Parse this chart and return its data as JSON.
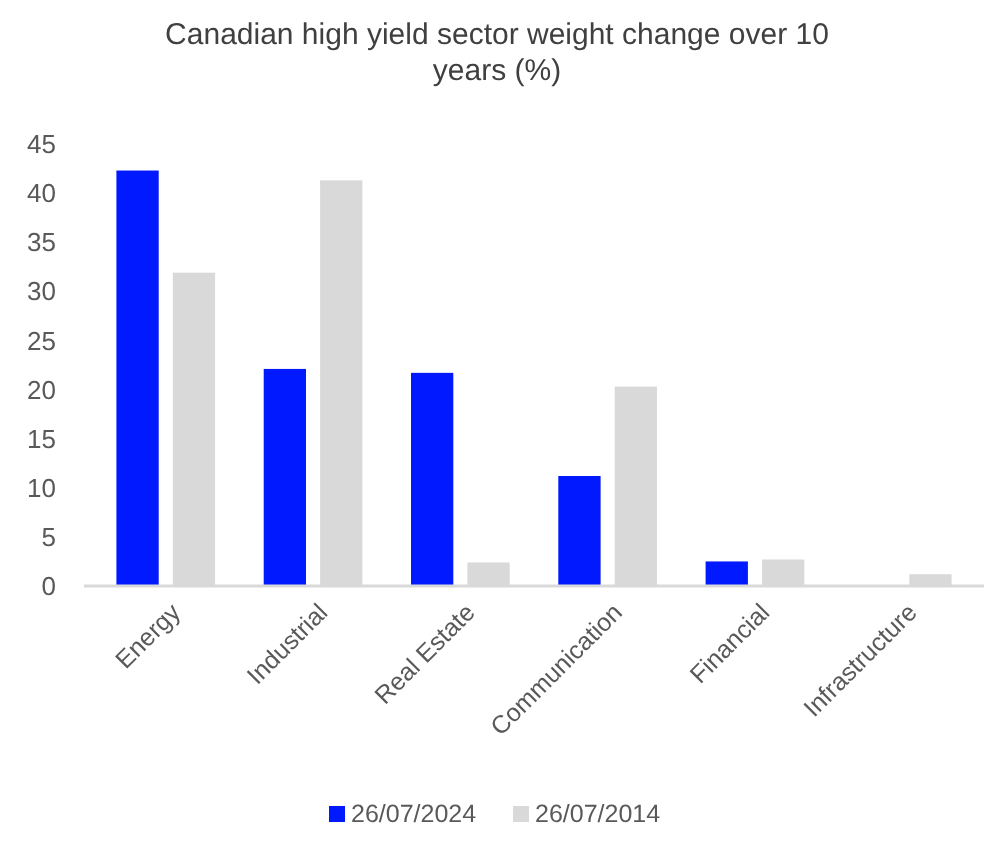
{
  "chart_data": {
    "type": "bar",
    "title": "Canadian high yield sector weight change over 10 years (%)",
    "categories": [
      "Energy",
      "Industrial",
      "Real Estate",
      "Communication",
      "Financial",
      "Infrastructure"
    ],
    "series": [
      {
        "name": "26/07/2024",
        "color": "#0019ff",
        "values": [
          42.3,
          22.1,
          21.7,
          11.2,
          2.5,
          0
        ]
      },
      {
        "name": "26/07/2014",
        "color": "#d9d9d9",
        "values": [
          31.9,
          41.3,
          2.4,
          20.3,
          2.7,
          1.2
        ]
      }
    ],
    "ylim": [
      0,
      45
    ],
    "yticks": [
      0,
      5,
      10,
      15,
      20,
      25,
      30,
      35,
      40,
      45
    ],
    "grid": false,
    "legend": "bottom"
  }
}
